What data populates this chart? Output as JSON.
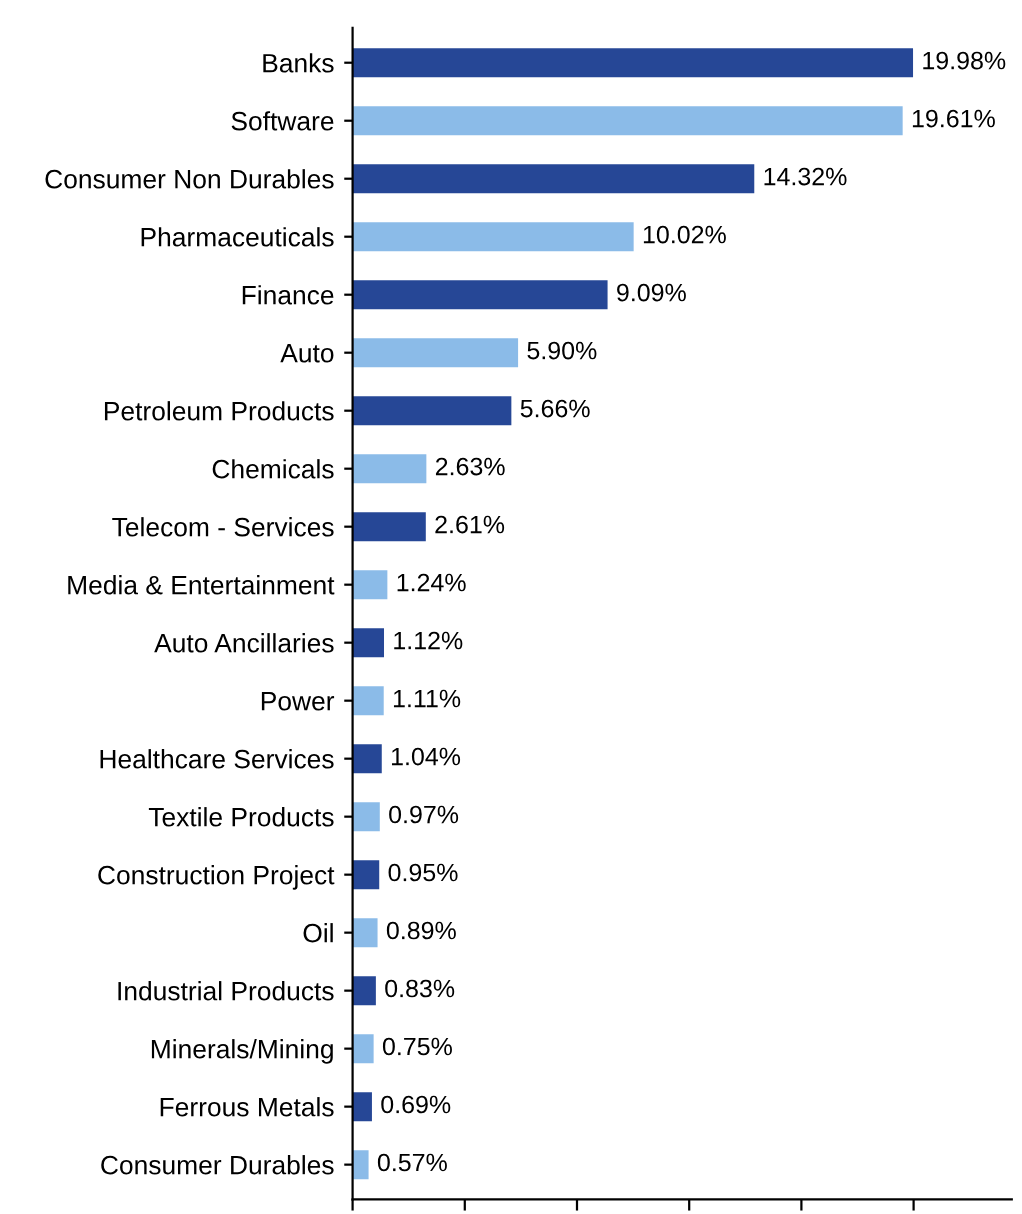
{
  "chart_data": {
    "type": "bar",
    "orientation": "horizontal",
    "categories": [
      "Banks",
      "Software",
      "Consumer Non Durables",
      "Pharmaceuticals",
      "Finance",
      "Auto",
      "Petroleum Products",
      "Chemicals",
      "Telecom - Services",
      "Media & Entertainment",
      "Auto Ancillaries",
      "Power",
      "Healthcare Services",
      "Textile Products",
      "Construction Project",
      "Oil",
      "Industrial Products",
      "Minerals/Mining",
      "Ferrous Metals",
      "Consumer Durables"
    ],
    "values": [
      19.98,
      19.61,
      14.32,
      10.02,
      9.09,
      5.9,
      5.66,
      2.63,
      2.61,
      1.24,
      1.12,
      1.11,
      1.04,
      0.97,
      0.95,
      0.89,
      0.83,
      0.75,
      0.69,
      0.57
    ],
    "value_labels": [
      "19.98%",
      "19.61%",
      "14.32%",
      "10.02%",
      "9.09%",
      "5.90%",
      "5.66%",
      "2.63%",
      "2.61%",
      "1.24%",
      "1.12%",
      "1.11%",
      "1.04%",
      "0.97%",
      "0.95%",
      "0.89%",
      "0.83%",
      "0.75%",
      "0.69%",
      "0.57%"
    ],
    "colors": [
      "#264796",
      "#8bbbe8",
      "#264796",
      "#8bbbe8",
      "#264796",
      "#8bbbe8",
      "#264796",
      "#8bbbe8",
      "#264796",
      "#8bbbe8",
      "#264796",
      "#8bbbe8",
      "#264796",
      "#8bbbe8",
      "#264796",
      "#8bbbe8",
      "#264796",
      "#8bbbe8",
      "#264796",
      "#8bbbe8"
    ],
    "xlim": [
      0,
      23.5
    ],
    "xticks": [
      {
        "value": 0,
        "label": null
      },
      {
        "value": 4,
        "label": null
      },
      {
        "value": 8,
        "label": null
      },
      {
        "value": 12,
        "label": null
      },
      {
        "value": 16,
        "label": null
      },
      {
        "value": 20,
        "label": null
      }
    ],
    "grid": false,
    "legend": false
  }
}
